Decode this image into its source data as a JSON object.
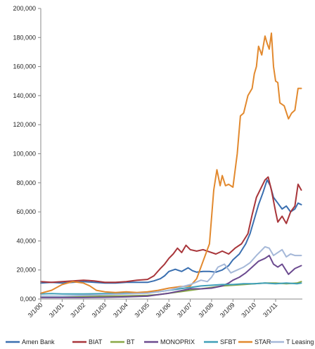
{
  "chart_data": {
    "type": "line",
    "title": "",
    "xlabel": "",
    "ylabel": "",
    "ylim": [
      0,
      200000
    ],
    "yticks": [
      0,
      20000,
      40000,
      60000,
      80000,
      100000,
      120000,
      140000,
      160000,
      180000,
      200000
    ],
    "ytick_labels": [
      "0,000",
      "20,000",
      "40,000",
      "60,000",
      "80,000",
      "100,000",
      "120,000",
      "140,000",
      "160,000",
      "180,000",
      "200,000"
    ],
    "x_range": [
      2000.0,
      2012.25
    ],
    "x_tick_labels": [
      "3/1/00",
      "3/1/01",
      "3/1/02",
      "3/1/03",
      "3/1/04",
      "3/1/05",
      "3/1/06",
      "3/1/07",
      "3/1/08",
      "3/1/09",
      "3/1/10",
      "3/1/11"
    ],
    "x_tick_years": [
      2000,
      2001,
      2002,
      2003,
      2004,
      2005,
      2006,
      2007,
      2008,
      2009,
      2010,
      2011
    ],
    "grid": false,
    "legend_position": "bottom",
    "series": [
      {
        "name": "Amen Bank",
        "color": "#3a6fb0",
        "x": [
          2000.0,
          2000.5,
          2001.0,
          2001.5,
          2002.0,
          2002.5,
          2003.0,
          2003.5,
          2004.0,
          2004.5,
          2005.0,
          2005.3,
          2005.6,
          2005.8,
          2006.0,
          2006.3,
          2006.6,
          2006.9,
          2007.1,
          2007.3,
          2007.6,
          2007.9,
          2008.2,
          2008.5,
          2008.8,
          2009.0,
          2009.3,
          2009.6,
          2009.8,
          2010.0,
          2010.2,
          2010.4,
          2010.6,
          2010.75,
          2010.9,
          2011.1,
          2011.3,
          2011.5,
          2011.7,
          2011.9,
          2012.05,
          2012.2
        ],
        "y": [
          11000,
          11500,
          11000,
          11500,
          12000,
          11500,
          11000,
          11000,
          11500,
          11500,
          11500,
          12500,
          14000,
          16000,
          19000,
          20500,
          19000,
          21500,
          19500,
          18500,
          19000,
          19000,
          18500,
          20000,
          23000,
          27000,
          31000,
          38000,
          45000,
          55000,
          65000,
          73000,
          82000,
          78000,
          70000,
          66000,
          62000,
          64000,
          60000,
          62000,
          66000,
          65000
        ]
      },
      {
        "name": "BIAT",
        "color": "#a8353a",
        "x": [
          2000.0,
          2000.5,
          2001.0,
          2001.5,
          2002.0,
          2002.5,
          2003.0,
          2003.5,
          2004.0,
          2004.5,
          2005.0,
          2005.3,
          2005.6,
          2005.8,
          2006.0,
          2006.2,
          2006.4,
          2006.6,
          2006.8,
          2007.0,
          2007.3,
          2007.6,
          2007.9,
          2008.2,
          2008.5,
          2008.8,
          2009.1,
          2009.4,
          2009.7,
          2009.9,
          2010.1,
          2010.3,
          2010.5,
          2010.65,
          2010.8,
          2011.0,
          2011.1,
          2011.3,
          2011.5,
          2011.7,
          2011.9,
          2012.05,
          2012.2
        ],
        "y": [
          12000,
          11500,
          12000,
          12500,
          13000,
          12500,
          11500,
          11500,
          12000,
          13000,
          13500,
          16000,
          21000,
          24000,
          28000,
          31000,
          35000,
          32000,
          37000,
          34000,
          33000,
          34000,
          32500,
          31000,
          33000,
          31000,
          35000,
          38000,
          45000,
          58000,
          70000,
          76000,
          82000,
          84000,
          75000,
          60000,
          53000,
          57000,
          52000,
          60000,
          64000,
          79000,
          75000
        ]
      },
      {
        "name": "BT",
        "color": "#8aa846",
        "x": [
          2000.0,
          2001.0,
          2002.0,
          2003.0,
          2004.0,
          2005.0,
          2005.5,
          2006.0,
          2006.5,
          2007.0,
          2007.5,
          2008.0,
          2008.5,
          2009.0,
          2009.5,
          2010.0,
          2010.5,
          2011.0,
          2011.5,
          2012.0,
          2012.2
        ],
        "y": [
          1500,
          1500,
          1800,
          2000,
          2200,
          2500,
          3000,
          4000,
          5000,
          6000,
          7000,
          8000,
          9000,
          9500,
          10000,
          10500,
          11000,
          11000,
          10500,
          11000,
          12000
        ]
      },
      {
        "name": "MONOPRIX",
        "color": "#6b4a8f",
        "x": [
          2000.0,
          2001.0,
          2002.0,
          2003.0,
          2004.0,
          2005.0,
          2005.5,
          2006.0,
          2006.5,
          2007.0,
          2007.5,
          2008.0,
          2008.5,
          2008.8,
          2009.0,
          2009.3,
          2009.6,
          2009.9,
          2010.2,
          2010.5,
          2010.7,
          2010.9,
          2011.1,
          2011.3,
          2011.6,
          2011.9,
          2012.2
        ],
        "y": [
          1000,
          1000,
          1000,
          1200,
          1500,
          2000,
          3000,
          4000,
          5500,
          7000,
          7000,
          7500,
          9000,
          11000,
          13000,
          15000,
          18000,
          22000,
          26000,
          28000,
          30000,
          24000,
          22000,
          24000,
          17000,
          21000,
          23000
        ]
      },
      {
        "name": "SFBT",
        "color": "#3f9fb8",
        "x": [
          2000.0,
          2000.5,
          2001.0,
          2002.0,
          2003.0,
          2004.0,
          2005.0,
          2005.5,
          2006.0,
          2006.5,
          2007.0,
          2007.5,
          2008.0,
          2008.5,
          2009.0,
          2009.5,
          2010.0,
          2010.5,
          2011.0,
          2011.5,
          2012.0,
          2012.2
        ],
        "y": [
          3500,
          3800,
          3500,
          3500,
          3800,
          4000,
          4500,
          5000,
          6000,
          7000,
          8000,
          9000,
          9500,
          10000,
          10000,
          10500,
          10500,
          11000,
          10500,
          11000,
          10500,
          11000
        ]
      },
      {
        "name": "STAR",
        "color": "#e2892e",
        "x": [
          2000.0,
          2000.5,
          2001.0,
          2001.5,
          2002.0,
          2002.3,
          2002.6,
          2003.0,
          2003.5,
          2004.0,
          2004.5,
          2005.0,
          2005.5,
          2006.0,
          2006.5,
          2007.0,
          2007.3,
          2007.6,
          2007.9,
          2008.1,
          2008.25,
          2008.4,
          2008.5,
          2008.65,
          2008.8,
          2009.0,
          2009.2,
          2009.35,
          2009.5,
          2009.7,
          2009.9,
          2010.0,
          2010.1,
          2010.2,
          2010.35,
          2010.5,
          2010.6,
          2010.7,
          2010.8,
          2010.9,
          2011.0,
          2011.1,
          2011.2,
          2011.4,
          2011.6,
          2011.75,
          2011.9,
          2012.05,
          2012.2
        ],
        "y": [
          4000,
          6000,
          10000,
          12000,
          11000,
          9000,
          6000,
          5000,
          4500,
          5000,
          4500,
          5000,
          6000,
          7500,
          8500,
          9000,
          14000,
          26000,
          38000,
          75000,
          89000,
          78000,
          85000,
          78000,
          79000,
          77000,
          100000,
          126000,
          128000,
          140000,
          145000,
          155000,
          160000,
          174000,
          168000,
          181000,
          176000,
          172000,
          183000,
          160000,
          150000,
          149000,
          135000,
          133000,
          124000,
          128000,
          130000,
          145000,
          145000
        ]
      },
      {
        "name": "T Leasing",
        "color": "#a5b8d8",
        "x": [
          2000.0,
          2001.0,
          2002.0,
          2003.0,
          2004.0,
          2005.0,
          2005.5,
          2006.0,
          2006.5,
          2007.0,
          2007.5,
          2007.8,
          2008.0,
          2008.3,
          2008.6,
          2008.9,
          2009.2,
          2009.5,
          2009.8,
          2010.1,
          2010.3,
          2010.5,
          2010.7,
          2010.9,
          2011.1,
          2011.3,
          2011.5,
          2011.7,
          2011.9,
          2012.2
        ],
        "y": [
          2000,
          2000,
          2500,
          3000,
          3500,
          4000,
          5000,
          6000,
          8000,
          10000,
          13000,
          12000,
          15000,
          22000,
          24000,
          18000,
          20000,
          22000,
          25000,
          30000,
          33000,
          36000,
          35000,
          30000,
          32000,
          34000,
          29000,
          31000,
          30000,
          30000
        ]
      }
    ]
  }
}
